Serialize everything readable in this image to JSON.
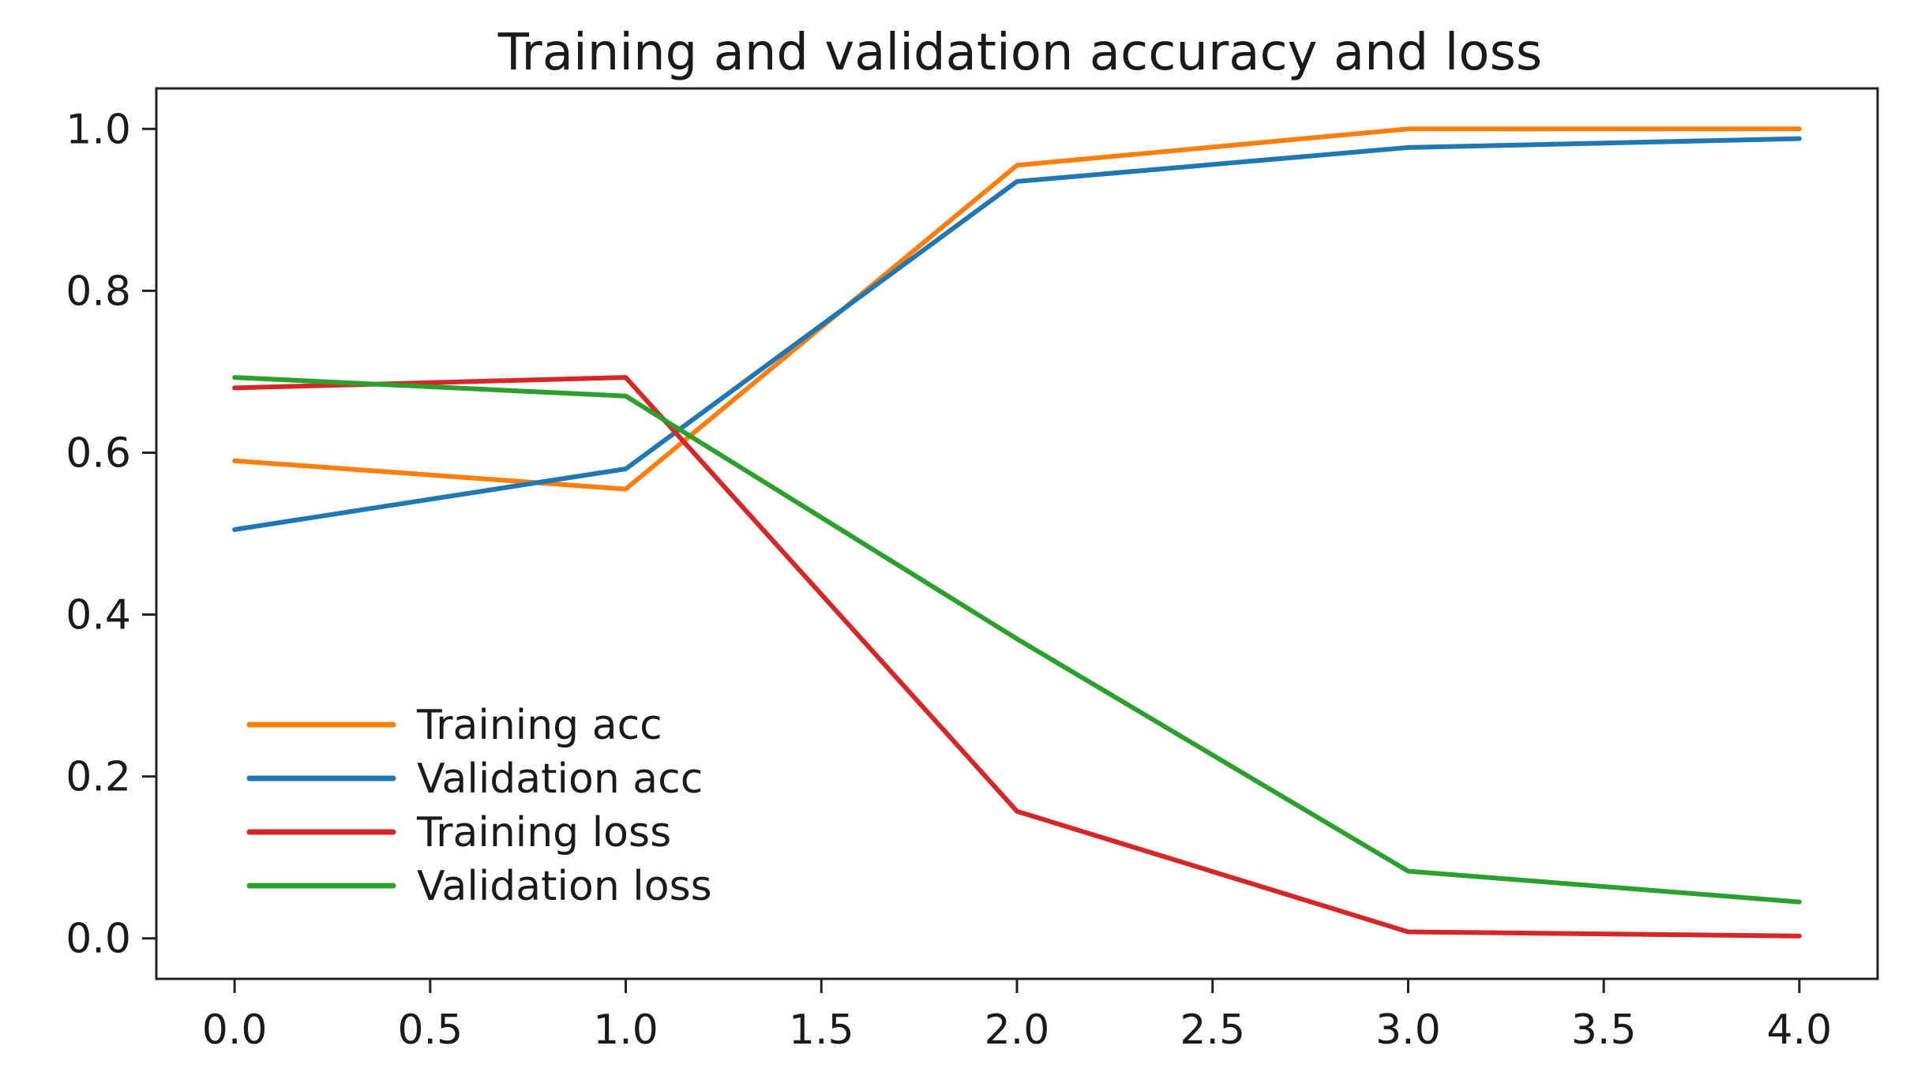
{
  "chart_data": {
    "type": "line",
    "title": "Training and validation accuracy and loss",
    "xlabel": "",
    "ylabel": "",
    "xlim": [
      -0.2,
      4.2
    ],
    "ylim": [
      -0.05,
      1.05
    ],
    "x_ticks": [
      0.0,
      0.5,
      1.0,
      1.5,
      2.0,
      2.5,
      3.0,
      3.5,
      4.0
    ],
    "x_tick_labels": [
      "0.0",
      "0.5",
      "1.0",
      "1.5",
      "2.0",
      "2.5",
      "3.0",
      "3.5",
      "4.0"
    ],
    "y_ticks": [
      0.0,
      0.2,
      0.4,
      0.6,
      0.8,
      1.0
    ],
    "y_tick_labels": [
      "0.0",
      "0.2",
      "0.4",
      "0.6",
      "0.8",
      "1.0"
    ],
    "grid": false,
    "legend_position": "lower-left",
    "x": [
      0,
      1,
      2,
      3,
      4
    ],
    "series": [
      {
        "name": "Training acc",
        "color": "#ff7f0e",
        "values": [
          0.59,
          0.555,
          0.955,
          1.0,
          1.0
        ]
      },
      {
        "name": "Validation acc",
        "color": "#1f77b4",
        "values": [
          0.505,
          0.58,
          0.935,
          0.977,
          0.988
        ]
      },
      {
        "name": "Training loss",
        "color": "#d62728",
        "values": [
          0.68,
          0.693,
          0.157,
          0.008,
          0.003
        ]
      },
      {
        "name": "Validation loss",
        "color": "#2ca02c",
        "values": [
          0.693,
          0.67,
          0.37,
          0.083,
          0.045
        ]
      }
    ]
  }
}
